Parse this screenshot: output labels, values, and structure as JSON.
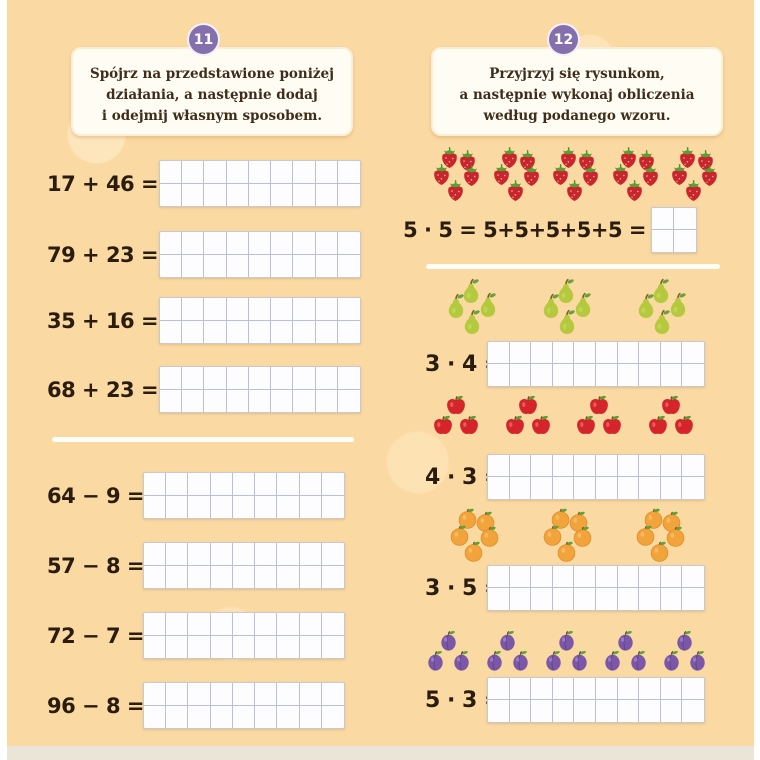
{
  "page": {
    "bg_color": "#fbd9a2",
    "badge_color": "#8470ad"
  },
  "exercise11": {
    "badge": "11",
    "instruction_lines": [
      "Spójrz na przedstawione poniżej",
      "działania, a następnie dodaj",
      "i odejmij własnym sposobem."
    ],
    "addition_problems": [
      "17 + 46 =",
      "79 + 23 =",
      "35 + 16 =",
      "68 + 23 ="
    ],
    "subtraction_problems": [
      "64 − 9 =",
      "57 − 8 =",
      "72 − 7 =",
      "96 − 8 ="
    ],
    "answer_grid": {
      "cols": 9,
      "rows": 2
    }
  },
  "exercise12": {
    "badge": "12",
    "instruction_lines": [
      "Przyjrzyj się rysunkom,",
      "a następnie wykonaj obliczenia",
      "według podanego wzoru."
    ],
    "example": {
      "fruit": "strawberry",
      "groups": 5,
      "per_group": 5,
      "expression": "5 · 5 = 5+5+5+5+5 =",
      "answer_grid": {
        "cols": 2,
        "rows": 2
      }
    },
    "problems": [
      {
        "fruit": "pear",
        "groups": 3,
        "per_group": 4,
        "expression": "3 · 4 ="
      },
      {
        "fruit": "apple",
        "groups": 4,
        "per_group": 3,
        "expression": "4 · 3 ="
      },
      {
        "fruit": "orange",
        "groups": 3,
        "per_group": 5,
        "expression": "3 · 5 ="
      },
      {
        "fruit": "plum",
        "groups": 5,
        "per_group": 3,
        "expression": "5 · 3 ="
      }
    ],
    "answer_grid": {
      "cols": 10,
      "rows": 2
    }
  }
}
